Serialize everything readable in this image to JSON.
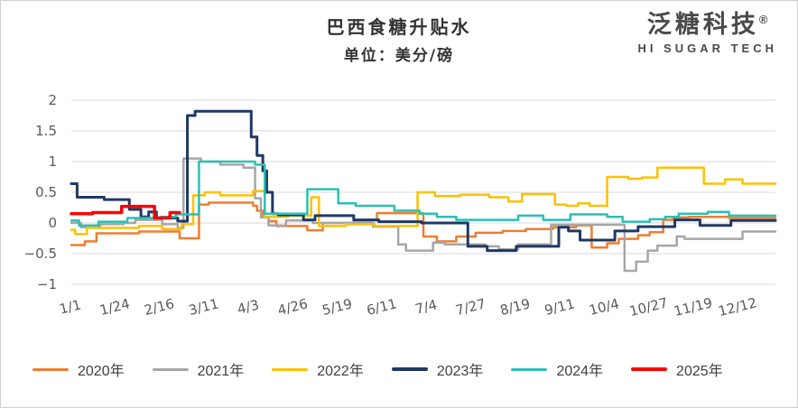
{
  "header": {
    "title": "巴西食糖升贴水",
    "subtitle": "单位：美分/磅",
    "logo": {
      "name_cn": "泛糖科技",
      "reg_mark": "®",
      "tagline": "HI SUGAR TECH"
    }
  },
  "colors": {
    "grid": "#d9d9d9",
    "tick_text": "#595959",
    "title_text": "#333333",
    "legend_text": "#404040"
  },
  "chart_data": {
    "type": "line",
    "title": "巴西食糖升贴水",
    "unit_label": "单位：美分/磅",
    "ylabel": "",
    "xlabel": "",
    "ylim": [
      -1,
      2
    ],
    "y_ticks": [
      2,
      1.5,
      1,
      0.5,
      0,
      -0.5,
      -1
    ],
    "y_tick_labels": [
      "2",
      "1.5",
      "1",
      "0.5",
      "0",
      "−0.5",
      "−1"
    ],
    "x_tick_labels": [
      "1/1",
      "1/24",
      "2/16",
      "3/11",
      "4/3",
      "4/26",
      "5/19",
      "6/11",
      "7/4",
      "7/27",
      "8/19",
      "9/11",
      "10/4",
      "10/27",
      "11/19",
      "12/12"
    ],
    "x_tick_days": [
      1,
      24,
      47,
      70,
      93,
      116,
      139,
      162,
      185,
      208,
      231,
      254,
      277,
      300,
      323,
      346
    ],
    "x_domain_days": [
      1,
      365
    ],
    "grid": "horizontal-only",
    "legend_position": "bottom",
    "line_style": "step-after",
    "series": [
      {
        "name": "2020年",
        "color": "#ED7D31",
        "width": 2.5,
        "points": [
          [
            1,
            -0.36
          ],
          [
            8,
            -0.3
          ],
          [
            14,
            -0.17
          ],
          [
            36,
            -0.14
          ],
          [
            57,
            -0.25
          ],
          [
            67,
            0.3
          ],
          [
            72,
            0.33
          ],
          [
            95,
            0.28
          ],
          [
            97,
            0.2
          ],
          [
            100,
            0.1
          ],
          [
            103,
            0.03
          ],
          [
            107,
            -0.05
          ],
          [
            123,
            -0.12
          ],
          [
            131,
            0.0
          ],
          [
            147,
            0.04
          ],
          [
            159,
            0.16
          ],
          [
            183,
            -0.22
          ],
          [
            190,
            -0.3
          ],
          [
            200,
            -0.22
          ],
          [
            210,
            -0.16
          ],
          [
            224,
            -0.13
          ],
          [
            236,
            -0.1
          ],
          [
            250,
            -0.07
          ],
          [
            262,
            -0.04
          ],
          [
            270,
            -0.4
          ],
          [
            278,
            -0.33
          ],
          [
            284,
            -0.26
          ],
          [
            294,
            -0.2
          ],
          [
            300,
            -0.15
          ],
          [
            307,
            0.05
          ],
          [
            312,
            0.09
          ],
          [
            320,
            0.1
          ],
          [
            341,
            0.08
          ],
          [
            365,
            0.08
          ]
        ]
      },
      {
        "name": "2021年",
        "color": "#A6A6A6",
        "width": 2.5,
        "points": [
          [
            1,
            0.0
          ],
          [
            6,
            -0.07
          ],
          [
            16,
            -0.02
          ],
          [
            28,
            0.0
          ],
          [
            34,
            0.05
          ],
          [
            48,
            -0.02
          ],
          [
            56,
            -0.08
          ],
          [
            59,
            1.05
          ],
          [
            68,
            1.0
          ],
          [
            78,
            0.95
          ],
          [
            90,
            0.9
          ],
          [
            96,
            0.4
          ],
          [
            99,
            0.09
          ],
          [
            103,
            -0.04
          ],
          [
            112,
            0.04
          ],
          [
            126,
            0.0
          ],
          [
            157,
            -0.06
          ],
          [
            170,
            -0.35
          ],
          [
            174,
            -0.45
          ],
          [
            188,
            -0.32
          ],
          [
            194,
            -0.35
          ],
          [
            215,
            -0.38
          ],
          [
            222,
            -0.43
          ],
          [
            232,
            -0.35
          ],
          [
            249,
            -0.03
          ],
          [
            287,
            -0.78
          ],
          [
            293,
            -0.63
          ],
          [
            299,
            -0.45
          ],
          [
            304,
            -0.37
          ],
          [
            314,
            -0.22
          ],
          [
            318,
            -0.26
          ],
          [
            348,
            -0.14
          ],
          [
            365,
            -0.14
          ]
        ]
      },
      {
        "name": "2022年",
        "color": "#FFC000",
        "width": 2.5,
        "points": [
          [
            1,
            -0.11
          ],
          [
            3,
            -0.18
          ],
          [
            9,
            -0.08
          ],
          [
            36,
            -0.05
          ],
          [
            48,
            -0.1
          ],
          [
            58,
            -0.02
          ],
          [
            64,
            0.45
          ],
          [
            70,
            0.5
          ],
          [
            78,
            0.45
          ],
          [
            95,
            0.52
          ],
          [
            101,
            0.1
          ],
          [
            113,
            0.12
          ],
          [
            125,
            0.42
          ],
          [
            129,
            -0.05
          ],
          [
            143,
            -0.02
          ],
          [
            158,
            -0.05
          ],
          [
            180,
            0.5
          ],
          [
            189,
            0.44
          ],
          [
            202,
            0.46
          ],
          [
            217,
            0.42
          ],
          [
            227,
            0.35
          ],
          [
            234,
            0.47
          ],
          [
            251,
            0.3
          ],
          [
            257,
            0.28
          ],
          [
            263,
            0.32
          ],
          [
            269,
            0.28
          ],
          [
            278,
            0.75
          ],
          [
            289,
            0.72
          ],
          [
            296,
            0.74
          ],
          [
            304,
            0.9
          ],
          [
            328,
            0.64
          ],
          [
            339,
            0.71
          ],
          [
            348,
            0.64
          ],
          [
            365,
            0.64
          ]
        ]
      },
      {
        "name": "2023年",
        "color": "#1F3864",
        "width": 3,
        "points": [
          [
            1,
            0.64
          ],
          [
            4,
            0.42
          ],
          [
            18,
            0.38
          ],
          [
            31,
            0.22
          ],
          [
            37,
            0.1
          ],
          [
            41,
            0.18
          ],
          [
            45,
            0.08
          ],
          [
            56,
            0.03
          ],
          [
            61,
            1.75
          ],
          [
            65,
            1.82
          ],
          [
            94,
            1.4
          ],
          [
            97,
            1.1
          ],
          [
            100,
            0.85
          ],
          [
            102,
            0.5
          ],
          [
            105,
            0.15
          ],
          [
            108,
            0.13
          ],
          [
            121,
            0.05
          ],
          [
            127,
            0.12
          ],
          [
            147,
            0.05
          ],
          [
            160,
            0.02
          ],
          [
            182,
            0.0
          ],
          [
            206,
            -0.38
          ],
          [
            216,
            -0.45
          ],
          [
            231,
            -0.38
          ],
          [
            253,
            -0.07
          ],
          [
            258,
            -0.13
          ],
          [
            264,
            -0.28
          ],
          [
            282,
            -0.13
          ],
          [
            294,
            -0.06
          ],
          [
            313,
            0.05
          ],
          [
            326,
            -0.04
          ],
          [
            342,
            0.04
          ],
          [
            365,
            0.04
          ]
        ]
      },
      {
        "name": "2024年",
        "color": "#2CBFB3",
        "width": 2.5,
        "points": [
          [
            1,
            0.04
          ],
          [
            5,
            -0.04
          ],
          [
            15,
            0.02
          ],
          [
            30,
            0.08
          ],
          [
            47,
            0.1
          ],
          [
            55,
            0.14
          ],
          [
            67,
            1.0
          ],
          [
            96,
            0.95
          ],
          [
            101,
            0.15
          ],
          [
            123,
            0.55
          ],
          [
            139,
            0.32
          ],
          [
            148,
            0.28
          ],
          [
            168,
            0.2
          ],
          [
            181,
            0.15
          ],
          [
            190,
            0.1
          ],
          [
            200,
            0.05
          ],
          [
            232,
            0.12
          ],
          [
            245,
            0.05
          ],
          [
            259,
            0.14
          ],
          [
            278,
            0.1
          ],
          [
            286,
            0.02
          ],
          [
            300,
            0.06
          ],
          [
            308,
            0.1
          ],
          [
            315,
            0.15
          ],
          [
            330,
            0.18
          ],
          [
            341,
            0.12
          ],
          [
            365,
            0.12
          ]
        ]
      },
      {
        "name": "2025年",
        "color": "#FF0000",
        "width": 3.5,
        "points": [
          [
            1,
            0.15
          ],
          [
            12,
            0.17
          ],
          [
            27,
            0.27
          ],
          [
            44,
            0.08
          ],
          [
            52,
            0.17
          ],
          [
            57,
            0.17
          ]
        ]
      }
    ]
  },
  "legend": {
    "items": [
      {
        "label": "2020年",
        "color": "#ED7D31"
      },
      {
        "label": "2021年",
        "color": "#A6A6A6"
      },
      {
        "label": "2022年",
        "color": "#FFC000"
      },
      {
        "label": "2023年",
        "color": "#1F3864"
      },
      {
        "label": "2024年",
        "color": "#2CBFB3"
      },
      {
        "label": "2025年",
        "color": "#FF0000"
      }
    ]
  }
}
